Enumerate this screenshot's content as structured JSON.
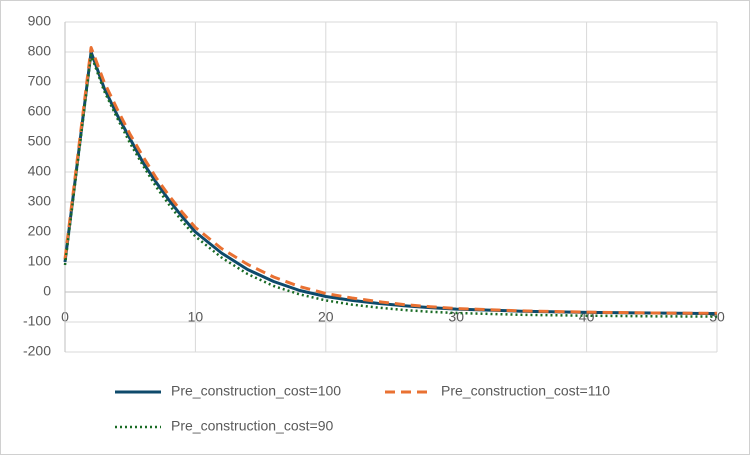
{
  "chart_data": {
    "type": "line",
    "x": [
      0,
      1,
      2,
      3,
      4,
      5,
      6,
      7,
      8,
      9,
      10,
      12,
      14,
      16,
      18,
      20,
      22,
      24,
      26,
      28,
      30,
      35,
      40,
      45,
      50
    ],
    "series": [
      {
        "name": "Pre_construction_cost=100",
        "color": "#0e4a6b",
        "style": "solid",
        "values": [
          100,
          450,
          800,
          680,
          590,
          510,
          430,
          365,
          305,
          250,
          200,
          130,
          75,
          35,
          5,
          -15,
          -28,
          -38,
          -46,
          -52,
          -57,
          -64,
          -68,
          -70,
          -72
        ]
      },
      {
        "name": "Pre_construction_cost=110",
        "color": "#e97132",
        "style": "dashed",
        "values": [
          110,
          462,
          815,
          700,
          610,
          525,
          450,
          380,
          320,
          265,
          215,
          145,
          92,
          50,
          18,
          -5,
          -20,
          -32,
          -42,
          -49,
          -55,
          -63,
          -67,
          -70,
          -71
        ]
      },
      {
        "name": "Pre_construction_cost=90",
        "color": "#196b24",
        "style": "dotted",
        "values": [
          90,
          440,
          790,
          670,
          580,
          495,
          420,
          350,
          290,
          235,
          185,
          115,
          60,
          20,
          -8,
          -28,
          -42,
          -52,
          -60,
          -66,
          -70,
          -76,
          -79,
          -81,
          -82
        ]
      }
    ],
    "xlim": [
      0,
      50
    ],
    "xticks": [
      0,
      10,
      20,
      30,
      40,
      50
    ],
    "ylim": [
      -200,
      900
    ],
    "yticks": [
      -200,
      -100,
      0,
      100,
      200,
      300,
      400,
      500,
      600,
      700,
      800,
      900
    ],
    "grid": true,
    "legend": "bottom"
  }
}
